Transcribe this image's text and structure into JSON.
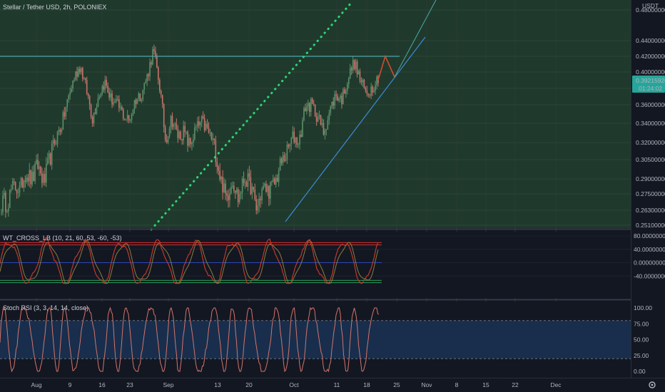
{
  "chart_data": [
    {
      "type": "line",
      "pane": "main",
      "title": "Stellar / Tether USD, 2h, POLONIEX",
      "currency_label": "USDT",
      "price_tag": "0.39215926",
      "countdown_tag": "01:24:02",
      "y_tick_labels": [
        "0.48000000",
        "0.44000000",
        "0.42000000",
        "0.40000000",
        "0.38000000",
        "0.36000000",
        "0.34000000",
        "0.32000000",
        "0.30500000",
        "0.29000000",
        "0.27500000",
        "0.26300000",
        "0.25100000"
      ],
      "ylim": [
        0.251,
        0.48
      ],
      "resistance_level": 0.42,
      "rising_support_line": [
        [
          0,
          0.254
        ],
        [
          1,
          0.438
        ]
      ],
      "dotted_trendline": [
        [
          0,
          0.251
        ],
        [
          1,
          0.48
        ]
      ],
      "price_path": [
        0.268,
        0.27,
        0.283,
        0.279,
        0.296,
        0.288,
        0.301,
        0.286,
        0.307,
        0.325,
        0.34,
        0.368,
        0.394,
        0.408,
        0.378,
        0.345,
        0.372,
        0.388,
        0.367,
        0.36,
        0.35,
        0.342,
        0.366,
        0.373,
        0.395,
        0.428,
        0.385,
        0.322,
        0.346,
        0.327,
        0.331,
        0.317,
        0.334,
        0.341,
        0.332,
        0.318,
        0.292,
        0.271,
        0.289,
        0.271,
        0.291,
        0.283,
        0.263,
        0.281,
        0.279,
        0.286,
        0.302,
        0.311,
        0.326,
        0.321,
        0.358,
        0.36,
        0.348,
        0.331,
        0.352,
        0.372,
        0.367,
        0.391,
        0.413,
        0.391,
        0.374,
        0.381,
        0.394
      ],
      "projection_path": [
        0.394,
        0.42,
        0.399
      ]
    },
    {
      "type": "line",
      "pane": "oscillator",
      "title": "WT_CROSS_LB (10, 21, 60, 53, -60, -53)",
      "y_tick_labels": [
        "80.00000000",
        "40.00000000",
        "0.00000000",
        "-40.00000000"
      ],
      "ylim": [
        -80,
        100
      ],
      "levels": [
        60,
        53,
        0,
        -53,
        -60
      ],
      "note": "oscillating wave between about -60 and 75"
    },
    {
      "type": "line",
      "pane": "stoch_rsi",
      "title": "Stoch RSI (3, 3, 14, 14, close)",
      "y_tick_labels": [
        "100.00",
        "75.00",
        "50.00",
        "25.00",
        "0.00"
      ],
      "ylim": [
        -5,
        105
      ],
      "band": [
        20,
        80
      ]
    }
  ],
  "x_tick_labels": [
    "Aug",
    "9",
    "16",
    "23",
    "Sep",
    "13",
    "20",
    "Oct",
    "11",
    "18",
    "25",
    "Nov",
    "8",
    "15",
    "22",
    "Dec"
  ],
  "colors": {
    "background": "#131722",
    "main_pane_fill": "#1f3a2c",
    "candles": "#5d8e6a",
    "candles_down": "#c7736a",
    "resistance": "#4ea8a8",
    "support": "#3d8ad6",
    "dotted": "#2ed477",
    "projection": "#d24b2f",
    "price_tag": "#26a69a",
    "wt_line": "#c0392b",
    "wt_level": "#d62f2f",
    "wt_zero": "#2d46b9",
    "rsi_line": "#d3746a",
    "rsi_band": "#1a3254"
  }
}
